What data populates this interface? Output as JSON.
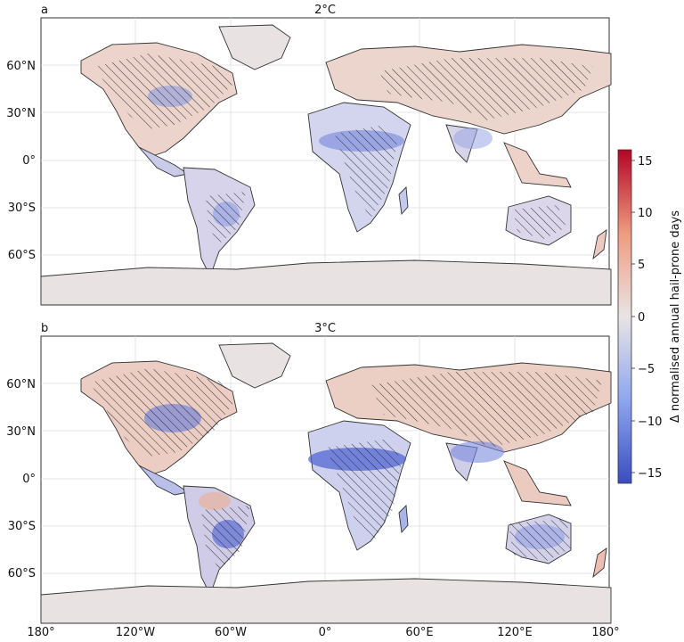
{
  "panels": [
    {
      "letter": "a",
      "title": "2°C",
      "regions": [
        {
          "name": "north-america",
          "label": "",
          "value": 2
        },
        {
          "name": "eastern-us",
          "label": "",
          "value": -6
        },
        {
          "name": "south-america",
          "label": "",
          "value": -8
        },
        {
          "name": "sahel",
          "label": "",
          "value": -9
        },
        {
          "name": "europe-asia",
          "label": "",
          "value": 3
        },
        {
          "name": "south-asia",
          "label": "",
          "value": -5
        },
        {
          "name": "australia",
          "label": "",
          "value": -3
        }
      ]
    },
    {
      "letter": "b",
      "title": "3°C",
      "regions": [
        {
          "name": "north-america",
          "label": "",
          "value": 4
        },
        {
          "name": "eastern-us",
          "label": "",
          "value": -9
        },
        {
          "name": "south-america",
          "label": "",
          "value": -12
        },
        {
          "name": "sahel",
          "label": "",
          "value": -14
        },
        {
          "name": "europe-asia",
          "label": "",
          "value": 5
        },
        {
          "name": "south-asia",
          "label": "",
          "value": -7
        },
        {
          "name": "australia",
          "label": "",
          "value": -5
        }
      ]
    }
  ],
  "axes": {
    "lat_labels": [
      "60°N",
      "30°N",
      "0°",
      "30°S",
      "60°S"
    ],
    "lon_labels": [
      "180°",
      "120°W",
      "60°W",
      "0°",
      "60°E",
      "120°E",
      "180°"
    ]
  },
  "colorbar": {
    "label": "Δ normalised annual hail-prone days",
    "ticks": [
      "15",
      "10",
      "5",
      "0",
      "−5",
      "−10",
      "−15"
    ],
    "range": [
      -16,
      16
    ],
    "colors": {
      "low": "#3b4cc0",
      "mid": "#e9e4e4",
      "high": "#b40426"
    }
  },
  "colors": {
    "land_base": "#e8dfdf",
    "ocean": "#ffffff",
    "grid": "#dcdcdc",
    "coast": "#333333"
  }
}
